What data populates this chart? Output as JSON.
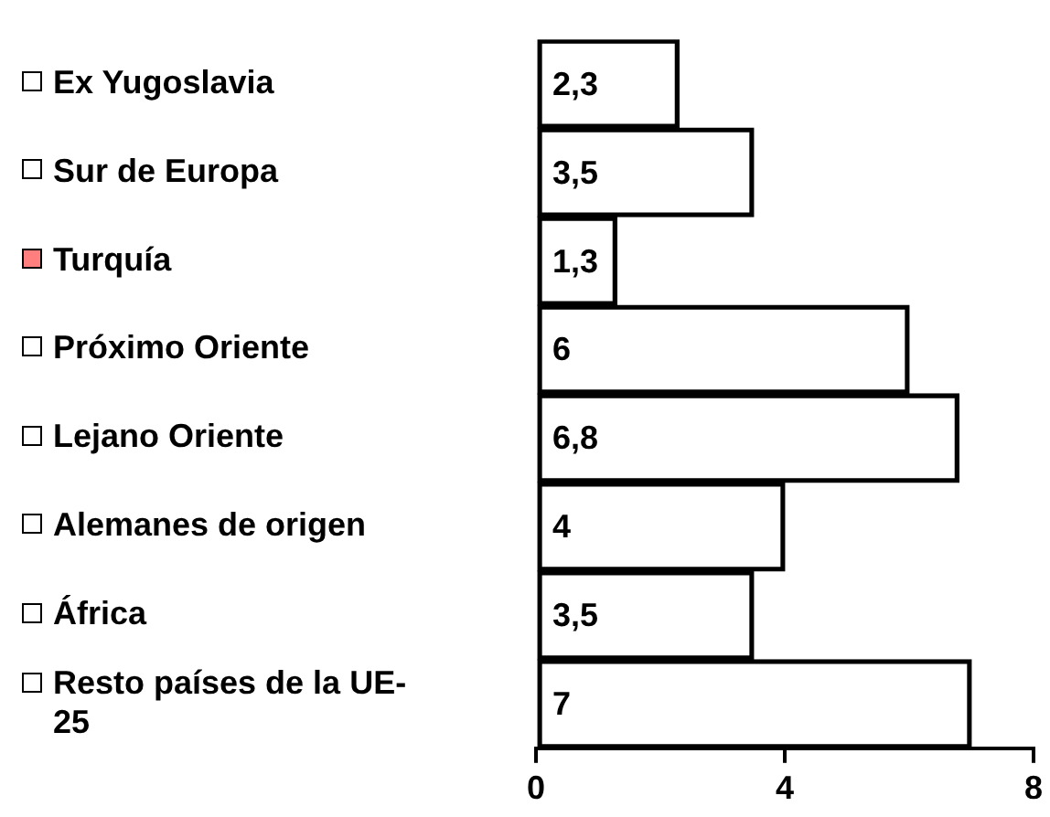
{
  "chart_data": {
    "type": "bar",
    "orientation": "horizontal",
    "categories": [
      "Ex Yugoslavia",
      "Sur de Europa",
      "Turquía",
      "Próximo Oriente",
      "Lejano Oriente",
      "Alemanes de origen",
      "África",
      "Resto países de la UE-25"
    ],
    "values": [
      2.3,
      3.5,
      1.3,
      6,
      6.8,
      4,
      3.5,
      7
    ],
    "value_labels": [
      "2,3",
      "3,5",
      "1,3",
      "6",
      "6,8",
      "4",
      "3,5",
      "7"
    ],
    "color": "#000000",
    "xlim": [
      0,
      8
    ],
    "xticks": [
      0,
      4,
      8
    ],
    "grid": false,
    "legend": false
  }
}
